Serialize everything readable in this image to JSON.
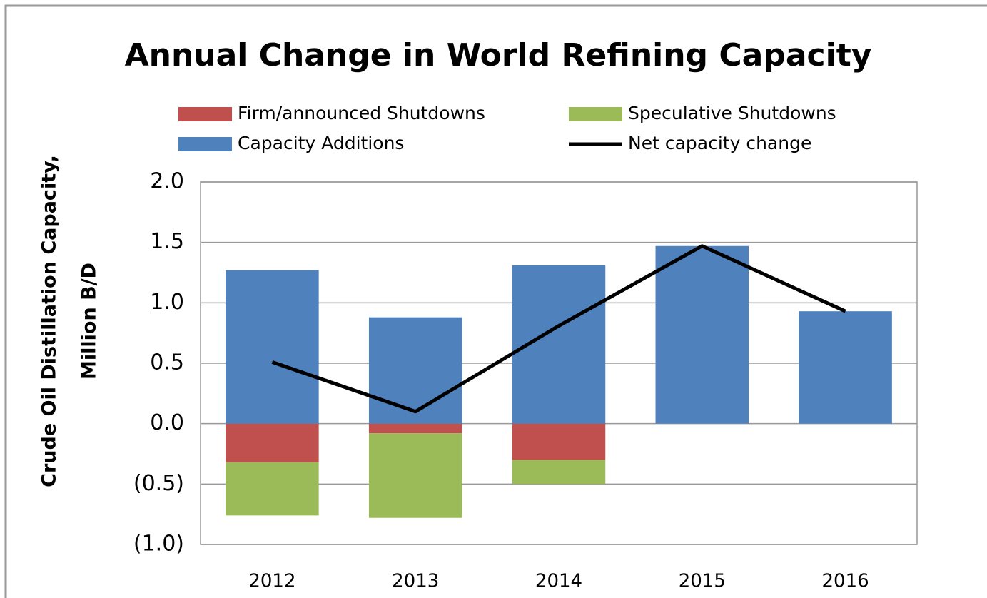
{
  "chart_data": {
    "type": "bar",
    "title": "Annual Change in World Refining Capacity",
    "ylabel": [
      "Crude Oil Distillation Capacity,",
      "Million B/D"
    ],
    "categories": [
      "2012",
      "2013",
      "2014",
      "2015",
      "2016"
    ],
    "series": [
      {
        "name": "Firm/announced Shutdowns",
        "color": "#c0504d",
        "kind": "bar",
        "values": [
          -0.32,
          -0.08,
          -0.3,
          0,
          0
        ]
      },
      {
        "name": "Speculative Shutdowns",
        "color": "#9bbb59",
        "kind": "bar",
        "values": [
          -0.44,
          -0.7,
          -0.2,
          0,
          0
        ]
      },
      {
        "name": "Capacity Additions",
        "color": "#4f81bd",
        "kind": "bar",
        "values": [
          1.27,
          0.88,
          1.31,
          1.47,
          0.93
        ]
      },
      {
        "name": "Net capacity change",
        "color": "#000000",
        "kind": "line",
        "values": [
          0.51,
          0.1,
          0.81,
          1.47,
          0.93
        ]
      }
    ],
    "stacked": true,
    "ylim": [
      -1.0,
      2.0
    ],
    "yticks": [
      {
        "value": 2.0,
        "label": "2.0"
      },
      {
        "value": 1.5,
        "label": "1.5"
      },
      {
        "value": 1.0,
        "label": "1.0"
      },
      {
        "value": 0.5,
        "label": "0.5"
      },
      {
        "value": 0.0,
        "label": "0.0"
      },
      {
        "value": -0.5,
        "label": "(0.5)"
      },
      {
        "value": -1.0,
        "label": "(1.0)"
      }
    ],
    "grid": true,
    "legend": "top"
  }
}
